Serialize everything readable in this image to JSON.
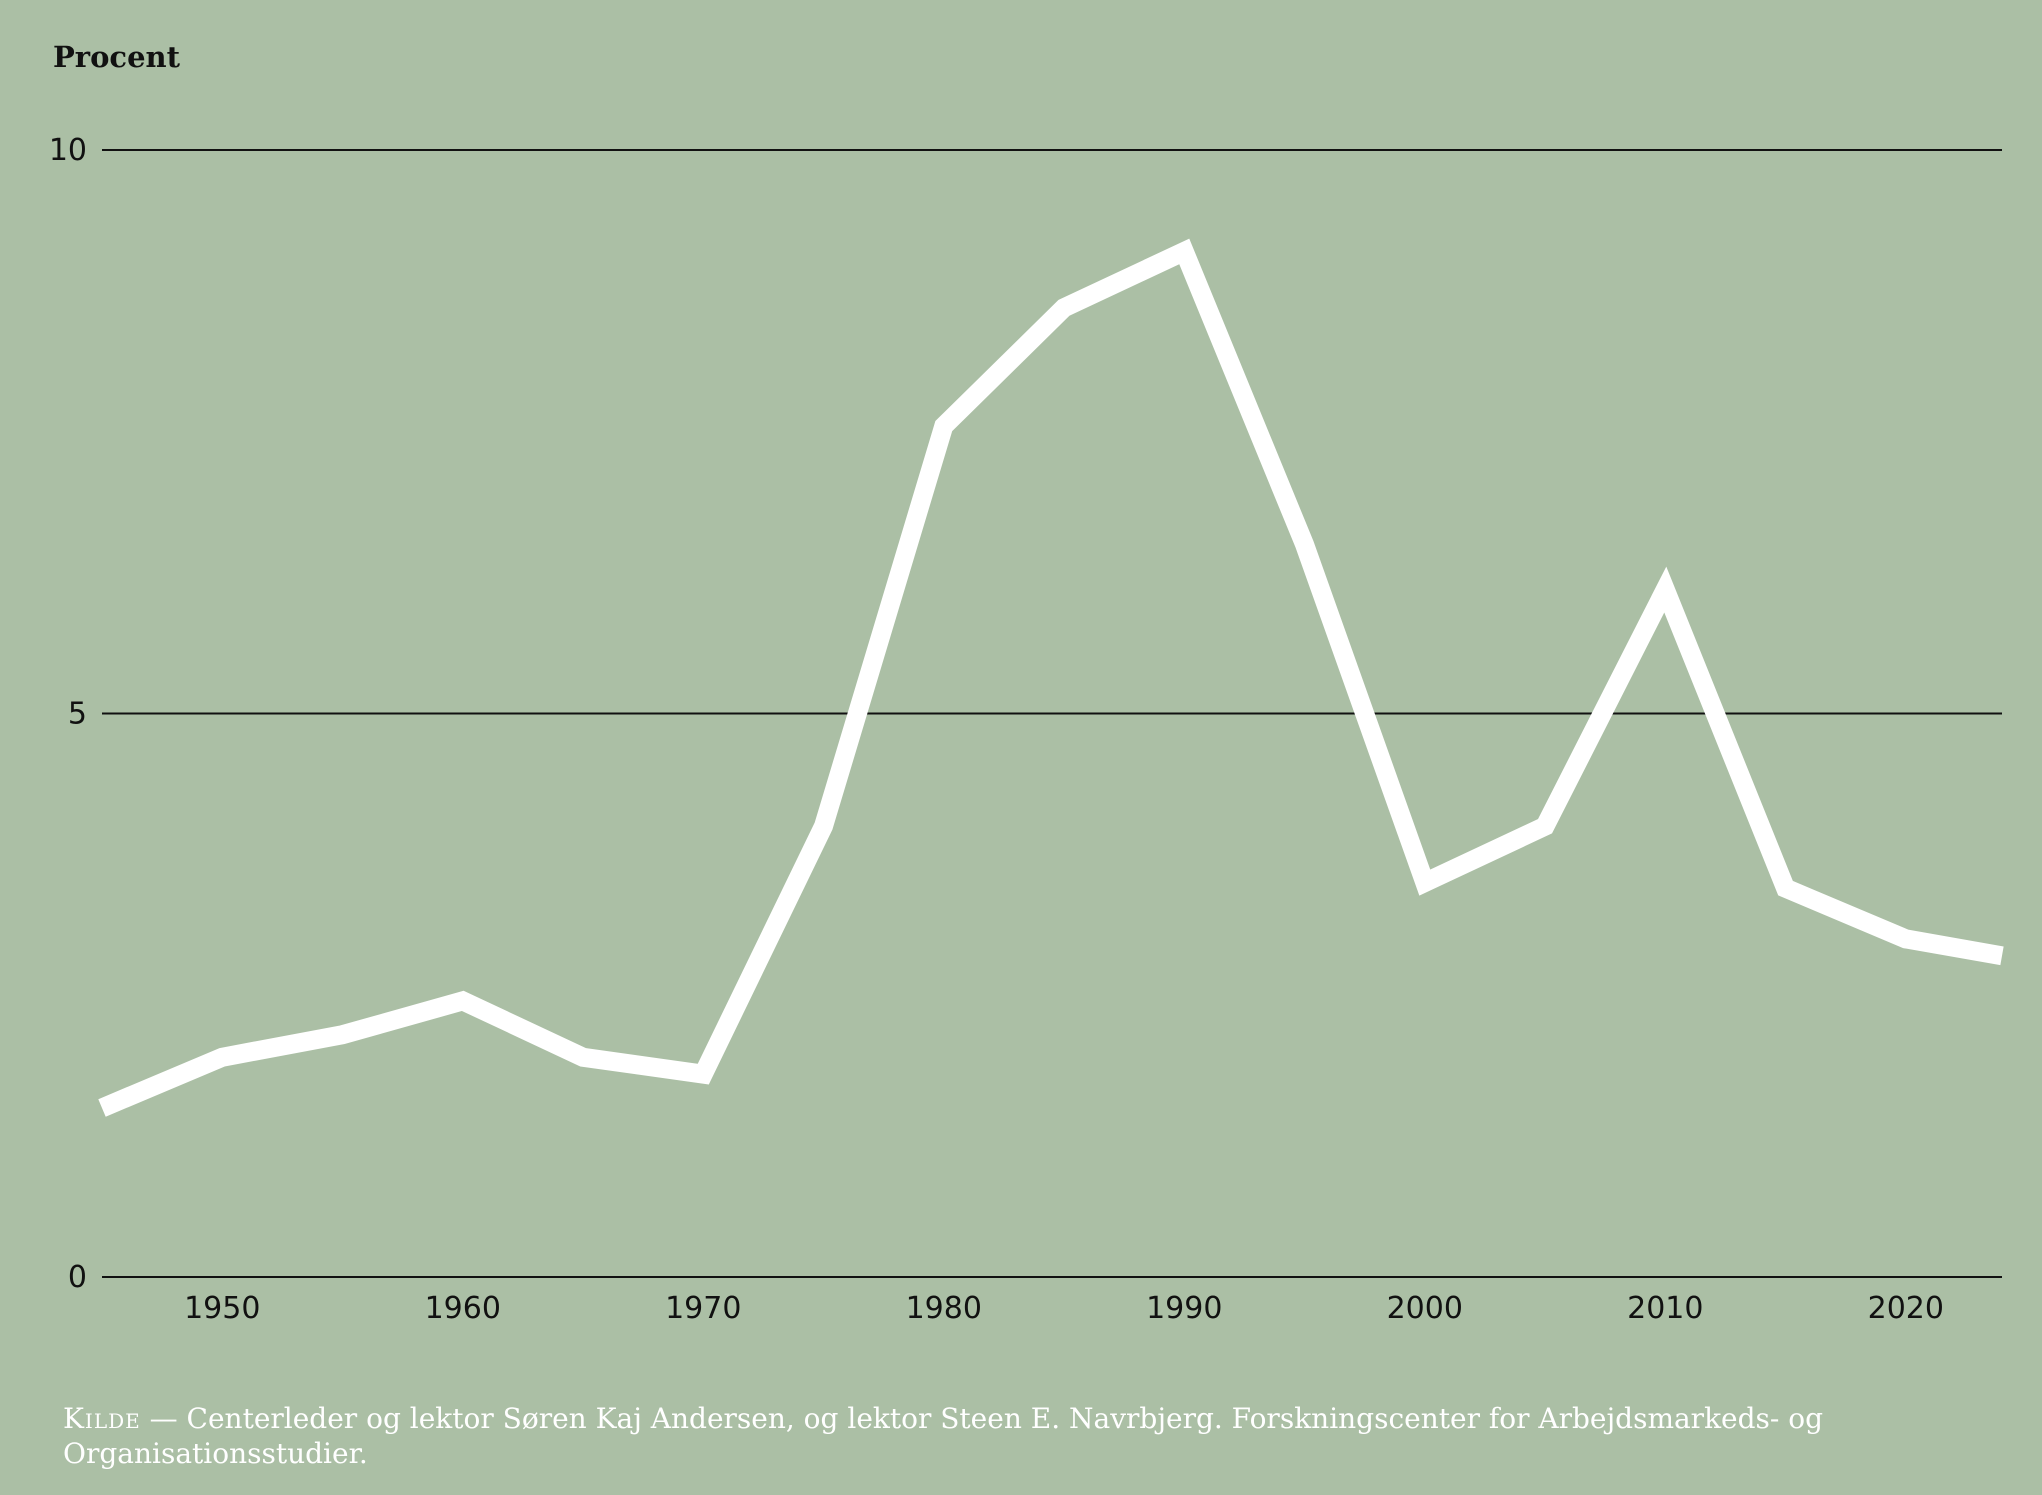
{
  "chart_data": {
    "type": "line",
    "ylabel": "Procent",
    "xlabel": "",
    "title": "",
    "ylim": [
      0,
      10
    ],
    "xlim": [
      1945,
      2024
    ],
    "yticks": [
      0,
      5,
      10
    ],
    "xticks": [
      1950,
      1960,
      1970,
      1980,
      1990,
      2000,
      2010,
      2020
    ],
    "grid": "horizontal",
    "series": [
      {
        "x": [
          1945,
          1950,
          1955,
          1960,
          1965,
          1970,
          1975,
          1980,
          1985,
          1990,
          1995,
          2000,
          2005,
          2010,
          2015,
          2020,
          2024
        ],
        "values": [
          1.5,
          1.95,
          2.15,
          2.45,
          1.95,
          1.8,
          4.0,
          7.55,
          8.6,
          9.1,
          6.5,
          3.5,
          4.0,
          6.1,
          3.45,
          3.0,
          2.85
        ]
      }
    ],
    "colors": {
      "background": "#abbfa5",
      "line": "#ffffff",
      "grid": "#111111"
    }
  },
  "source": {
    "label": "Kilde",
    "dash": "—",
    "text": "Centerleder og lektor Søren Kaj Andersen, og lektor Steen E. Navrbjerg. Forskningscenter for Arbejdsmarkeds- og Organisationsstudier."
  }
}
